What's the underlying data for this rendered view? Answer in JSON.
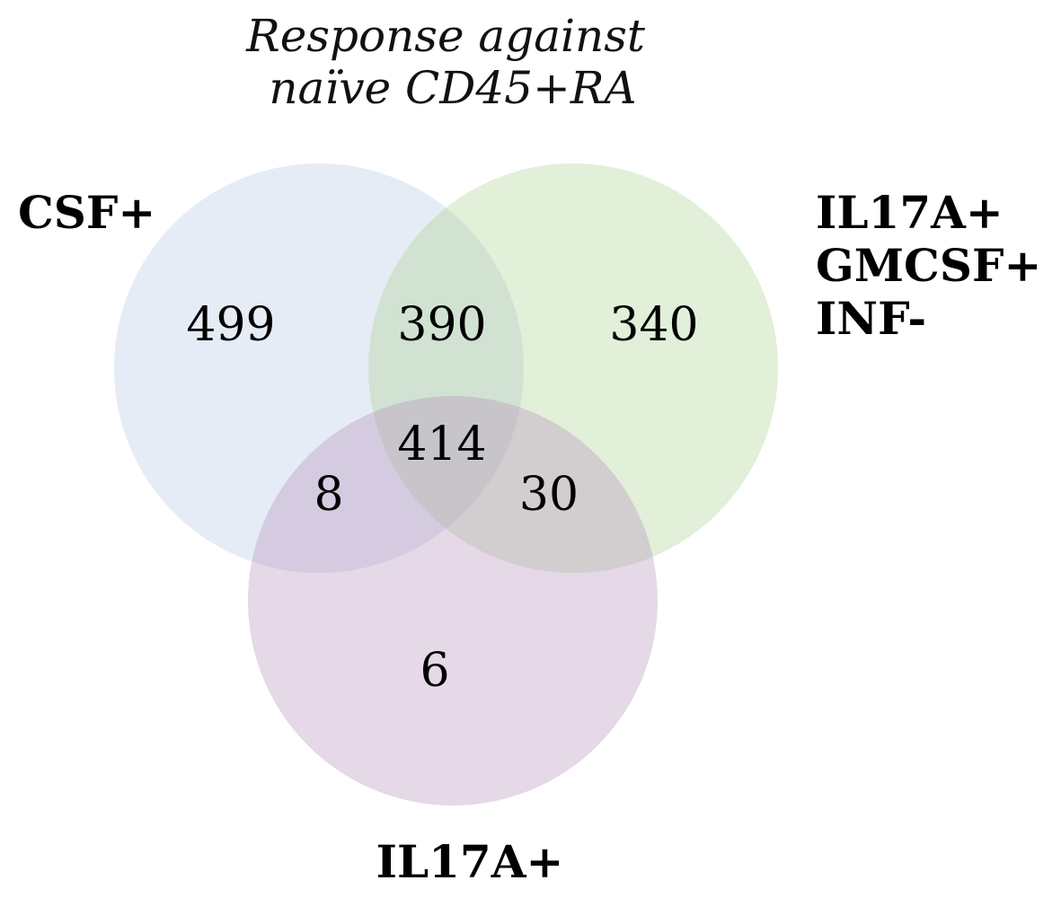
{
  "diagram": {
    "title_lines": [
      "Response against",
      "naïve CD45+RA"
    ],
    "sets": [
      {
        "key": "a",
        "label_lines": [
          "CSF+"
        ],
        "color": "#9db5dc"
      },
      {
        "key": "b",
        "label_lines": [
          "IL17A+",
          "GMCSF+",
          "INF-"
        ],
        "color": "#a6cd8d"
      },
      {
        "key": "c",
        "label_lines": [
          "IL17A+"
        ],
        "color": "#b58fbb"
      }
    ],
    "regions": {
      "a_only": "499",
      "ab": "390",
      "b_only": "340",
      "abc": "414",
      "ac": "8",
      "bc": "30",
      "c_only": "6"
    }
  }
}
